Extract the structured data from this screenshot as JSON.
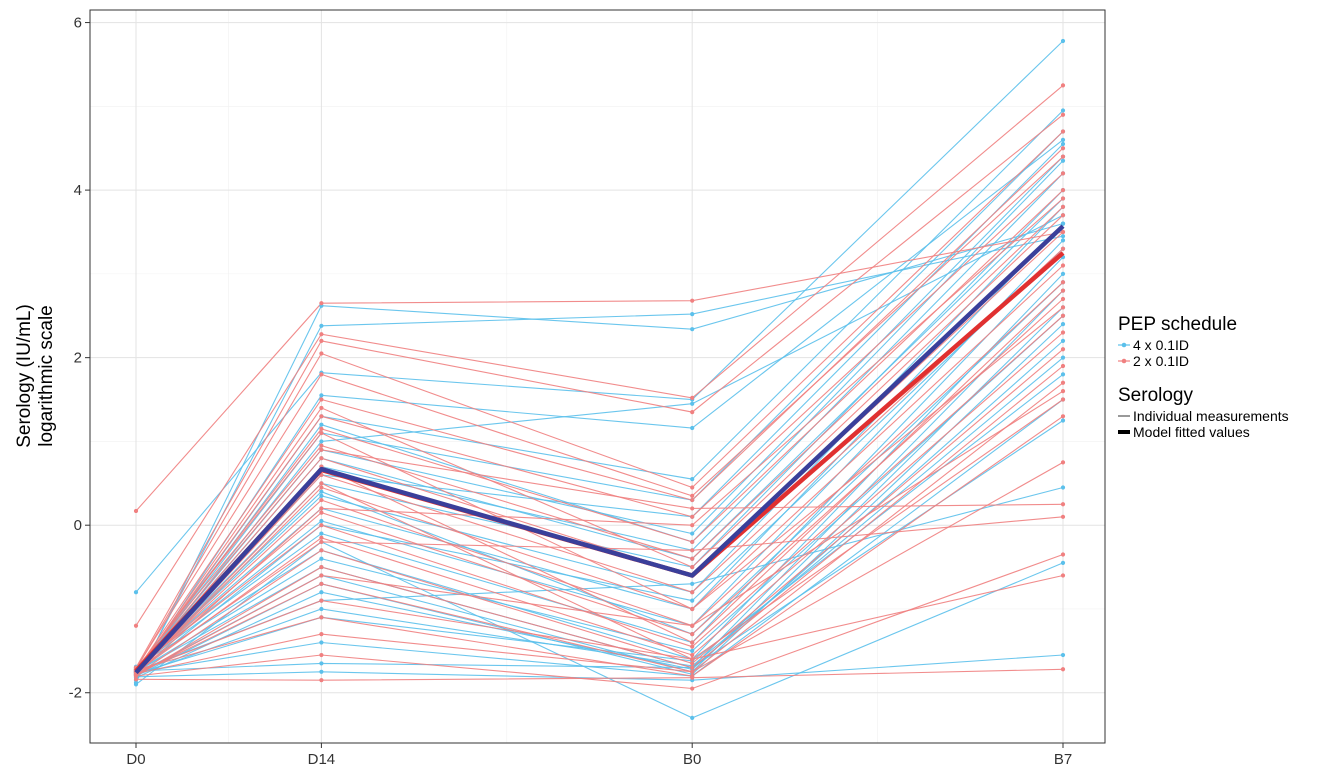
{
  "chart_data": {
    "type": "line",
    "title": "",
    "xlabel": "",
    "ylabel": "Serology (IU/mL)",
    "ylabel_line2": "logarithmic scale",
    "categories": [
      "D0",
      "D14",
      "B0",
      "B7"
    ],
    "x_positions": [
      0,
      1,
      3,
      5
    ],
    "ylim": [
      -2.6,
      6.15
    ],
    "yticks": [
      -2,
      0,
      2,
      4,
      6
    ],
    "ytick_labels": [
      "-2",
      "0",
      "2",
      "4",
      "6"
    ],
    "grid": true,
    "legend_position": "right",
    "legend": {
      "groups": [
        {
          "title": "PEP schedule",
          "entries": [
            {
              "label": "4 x 0.1ID",
              "color": "#5BC0EB",
              "kind": "point-line"
            },
            {
              "label": "2 x 0.1ID",
              "color": "#F08080",
              "kind": "point-line"
            }
          ]
        },
        {
          "title": "Serology",
          "entries": [
            {
              "label": "Individual measurements",
              "color": "#333333",
              "kind": "thin-line"
            },
            {
              "label": "Model fitted values",
              "color": "#000000",
              "kind": "thick-line"
            }
          ]
        }
      ]
    },
    "model_fitted": [
      {
        "name": "2 x 0.1ID",
        "color": "#E03030",
        "values": [
          -1.74,
          0.66,
          -0.6,
          3.25
        ]
      },
      {
        "name": "4 x 0.1ID",
        "color": "#3A3F9A",
        "values": [
          -1.76,
          0.67,
          -0.6,
          3.57
        ]
      }
    ],
    "individual_series": [
      {
        "color": "#5BC0EB",
        "values": [
          -1.88,
          2.62,
          2.34,
          3.6
        ]
      },
      {
        "color": "#5BC0EB",
        "values": [
          -1.85,
          2.38,
          2.52,
          3.45
        ]
      },
      {
        "color": "#5BC0EB",
        "values": [
          -0.8,
          1.82,
          1.5,
          5.78
        ]
      },
      {
        "color": "#5BC0EB",
        "values": [
          -1.8,
          1.55,
          1.16,
          4.6
        ]
      },
      {
        "color": "#5BC0EB",
        "values": [
          -1.78,
          1.3,
          0.55,
          4.95
        ]
      },
      {
        "color": "#5BC0EB",
        "values": [
          -1.77,
          1.1,
          0.3,
          4.7
        ]
      },
      {
        "color": "#5BC0EB",
        "values": [
          -1.76,
          0.9,
          -0.1,
          4.4
        ]
      },
      {
        "color": "#5BC0EB",
        "values": [
          -1.75,
          0.7,
          -0.3,
          4.2
        ]
      },
      {
        "color": "#5BC0EB",
        "values": [
          -1.74,
          0.5,
          -0.5,
          4.0
        ]
      },
      {
        "color": "#5BC0EB",
        "values": [
          -1.73,
          0.35,
          -0.8,
          3.8
        ]
      },
      {
        "color": "#5BC0EB",
        "values": [
          -1.72,
          0.2,
          -1.0,
          3.6
        ]
      },
      {
        "color": "#5BC0EB",
        "values": [
          -1.71,
          0.05,
          -1.2,
          3.4
        ]
      },
      {
        "color": "#5BC0EB",
        "values": [
          -1.7,
          -0.1,
          -1.4,
          3.2
        ]
      },
      {
        "color": "#5BC0EB",
        "values": [
          -1.69,
          -0.3,
          -1.6,
          3.0
        ]
      },
      {
        "color": "#5BC0EB",
        "values": [
          -1.75,
          -0.5,
          -1.7,
          2.8
        ]
      },
      {
        "color": "#5BC0EB",
        "values": [
          -1.78,
          -0.6,
          -1.75,
          2.6
        ]
      },
      {
        "color": "#5BC0EB",
        "values": [
          -1.8,
          -0.7,
          -1.78,
          2.4
        ]
      },
      {
        "color": "#5BC0EB",
        "values": [
          -1.82,
          -0.8,
          -1.72,
          2.2
        ]
      },
      {
        "color": "#5BC0EB",
        "values": [
          -1.79,
          -1.0,
          -1.68,
          2.0
        ]
      },
      {
        "color": "#5BC0EB",
        "values": [
          -1.77,
          -1.1,
          -1.62,
          1.8
        ]
      },
      {
        "color": "#5BC0EB",
        "values": [
          -1.76,
          -1.4,
          -1.8,
          1.5
        ]
      },
      {
        "color": "#5BC0EB",
        "values": [
          -1.74,
          -1.65,
          -1.7,
          1.25
        ]
      },
      {
        "color": "#5BC0EB",
        "values": [
          -1.81,
          -1.75,
          -1.85,
          -1.55
        ]
      },
      {
        "color": "#5BC0EB",
        "values": [
          -1.9,
          -0.2,
          -2.3,
          -0.45
        ]
      },
      {
        "color": "#5BC0EB",
        "values": [
          -1.72,
          0.6,
          0.1,
          4.55
        ]
      },
      {
        "color": "#5BC0EB",
        "values": [
          -1.76,
          0.8,
          -0.4,
          3.9
        ]
      },
      {
        "color": "#5BC0EB",
        "values": [
          -1.78,
          1.2,
          -0.2,
          4.35
        ]
      },
      {
        "color": "#5BC0EB",
        "values": [
          -1.73,
          0.4,
          -1.3,
          2.9
        ]
      },
      {
        "color": "#5BC0EB",
        "values": [
          -1.77,
          0.0,
          -0.9,
          3.3
        ]
      },
      {
        "color": "#5BC0EB",
        "values": [
          -1.75,
          -0.4,
          -1.5,
          2.5
        ]
      },
      {
        "color": "#5BC0EB",
        "values": [
          -1.79,
          1.0,
          1.45,
          3.7
        ]
      },
      {
        "color": "#5BC0EB",
        "values": [
          -1.74,
          -0.9,
          -0.7,
          0.45
        ]
      },
      {
        "color": "#F08080",
        "values": [
          0.17,
          2.65,
          2.68,
          3.5
        ]
      },
      {
        "color": "#F08080",
        "values": [
          -1.2,
          2.28,
          1.52,
          5.25
        ]
      },
      {
        "color": "#F08080",
        "values": [
          -1.7,
          2.2,
          1.35,
          4.9
        ]
      },
      {
        "color": "#F08080",
        "values": [
          -1.72,
          2.05,
          0.45,
          4.7
        ]
      },
      {
        "color": "#F08080",
        "values": [
          -1.74,
          1.5,
          0.3,
          4.5
        ]
      },
      {
        "color": "#F08080",
        "values": [
          -1.76,
          1.3,
          0.1,
          4.2
        ]
      },
      {
        "color": "#F08080",
        "values": [
          -1.73,
          1.15,
          -0.2,
          4.0
        ]
      },
      {
        "color": "#F08080",
        "values": [
          -1.71,
          0.95,
          -0.4,
          3.8
        ]
      },
      {
        "color": "#F08080",
        "values": [
          -1.75,
          0.8,
          -0.6,
          3.5
        ]
      },
      {
        "color": "#F08080",
        "values": [
          -1.77,
          0.6,
          -0.8,
          3.3
        ]
      },
      {
        "color": "#F08080",
        "values": [
          -1.78,
          0.45,
          -1.0,
          3.1
        ]
      },
      {
        "color": "#F08080",
        "values": [
          -1.74,
          0.3,
          -1.2,
          2.9
        ]
      },
      {
        "color": "#F08080",
        "values": [
          -1.72,
          0.15,
          -1.3,
          2.7
        ]
      },
      {
        "color": "#F08080",
        "values": [
          -1.7,
          0.0,
          -1.45,
          2.5
        ]
      },
      {
        "color": "#F08080",
        "values": [
          -1.76,
          -0.15,
          -1.55,
          2.3
        ]
      },
      {
        "color": "#F08080",
        "values": [
          -1.79,
          -0.3,
          -1.65,
          2.1
        ]
      },
      {
        "color": "#F08080",
        "values": [
          -1.8,
          -0.5,
          -1.7,
          1.9
        ]
      },
      {
        "color": "#F08080",
        "values": [
          -1.78,
          -0.7,
          -1.75,
          1.7
        ]
      },
      {
        "color": "#F08080",
        "values": [
          -1.75,
          -0.9,
          -1.6,
          1.5
        ]
      },
      {
        "color": "#F08080",
        "values": [
          -1.73,
          -1.1,
          -1.8,
          1.3
        ]
      },
      {
        "color": "#F08080",
        "values": [
          -1.77,
          -1.3,
          -1.75,
          0.75
        ]
      },
      {
        "color": "#F08080",
        "values": [
          -1.8,
          -1.55,
          -1.95,
          -0.35
        ]
      },
      {
        "color": "#F08080",
        "values": [
          -1.84,
          -1.85,
          -1.82,
          -1.72
        ]
      },
      {
        "color": "#F08080",
        "values": [
          -1.74,
          0.9,
          0.2,
          0.25
        ]
      },
      {
        "color": "#F08080",
        "values": [
          -1.76,
          1.4,
          -0.5,
          3.7
        ]
      },
      {
        "color": "#F08080",
        "values": [
          -1.72,
          1.1,
          -1.0,
          2.6
        ]
      },
      {
        "color": "#F08080",
        "values": [
          -1.75,
          0.7,
          -1.4,
          2.8
        ]
      },
      {
        "color": "#F08080",
        "values": [
          -1.78,
          0.2,
          0.0,
          3.9
        ]
      },
      {
        "color": "#F08080",
        "values": [
          -1.73,
          -0.2,
          -0.3,
          0.1
        ]
      },
      {
        "color": "#F08080",
        "values": [
          -1.77,
          0.5,
          -1.6,
          -0.6
        ]
      },
      {
        "color": "#F08080",
        "values": [
          -1.71,
          1.8,
          0.35,
          4.4
        ]
      },
      {
        "color": "#F08080",
        "values": [
          -1.79,
          -0.6,
          -1.2,
          1.6
        ]
      }
    ]
  }
}
